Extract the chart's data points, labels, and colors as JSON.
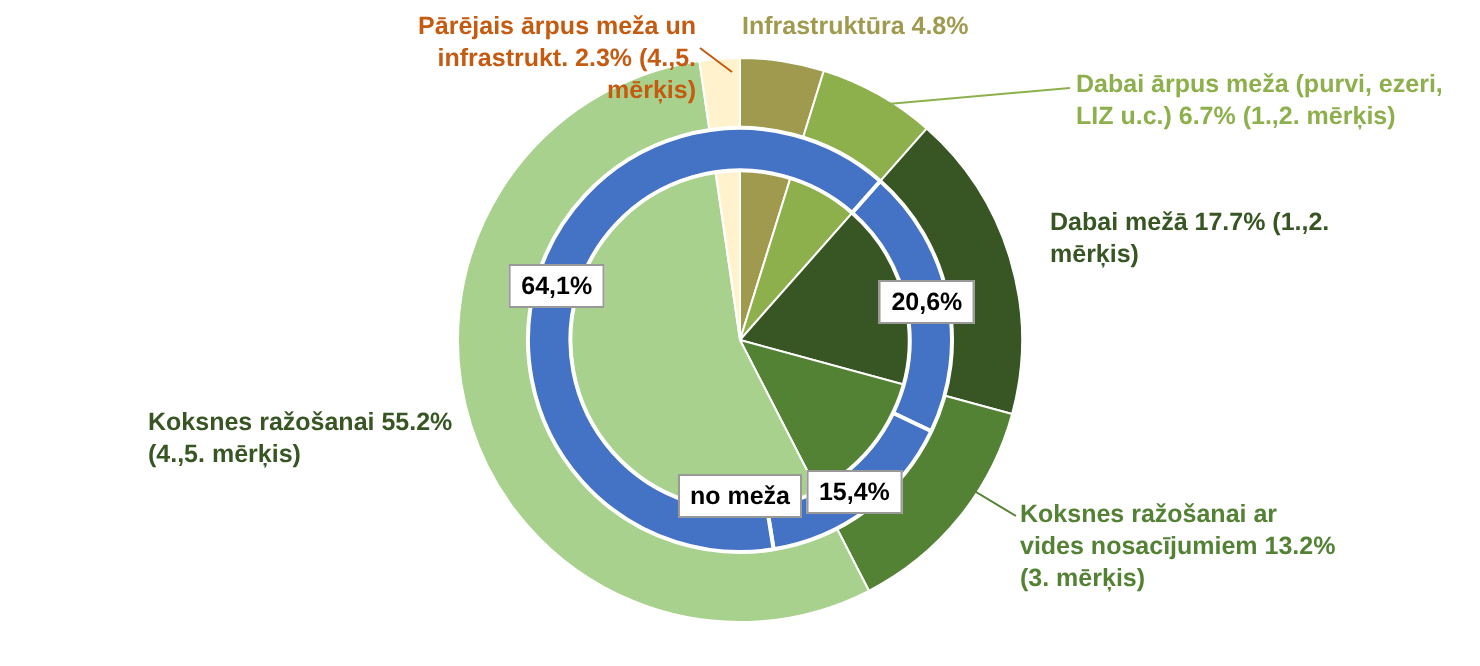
{
  "chart_data": [
    {
      "type": "pie",
      "categories": [
        "Infrastruktūra",
        "Dabai ārpus meža (purvi, ezeri, LIZ u.c.)",
        "Dabai mežā",
        "Koksnes ražošanai ar vides nosacījumiem",
        "Koksnes ražošanai",
        "Pārējais ārpus meža un infrastrukt."
      ],
      "values": [
        4.8,
        6.7,
        17.7,
        13.2,
        55.2,
        2.3
      ],
      "value_labels": [
        "4.8%",
        "6.7% (1.,2. mērķis)",
        "17.7% (1.,2. mērķis)",
        "13.2% (3. mērķis)",
        "55.2% (4.,5. mērķis)",
        "2.3% (4.,5. mērķis)"
      ],
      "colors": [
        "#a09a4f",
        "#8db04c",
        "#375623",
        "#548235",
        "#a9d18e",
        "#fff2cc"
      ],
      "legend": false
    },
    {
      "type": "donut",
      "title": "no meža",
      "categories": [
        null,
        null,
        null
      ],
      "values": [
        20.6,
        15.4,
        64.1
      ],
      "value_labels": [
        "20,6%",
        "15,4%",
        "64,1%"
      ],
      "colors": [
        "#4472c4",
        "#4472c4",
        "#4472c4"
      ],
      "legend": false
    }
  ]
}
